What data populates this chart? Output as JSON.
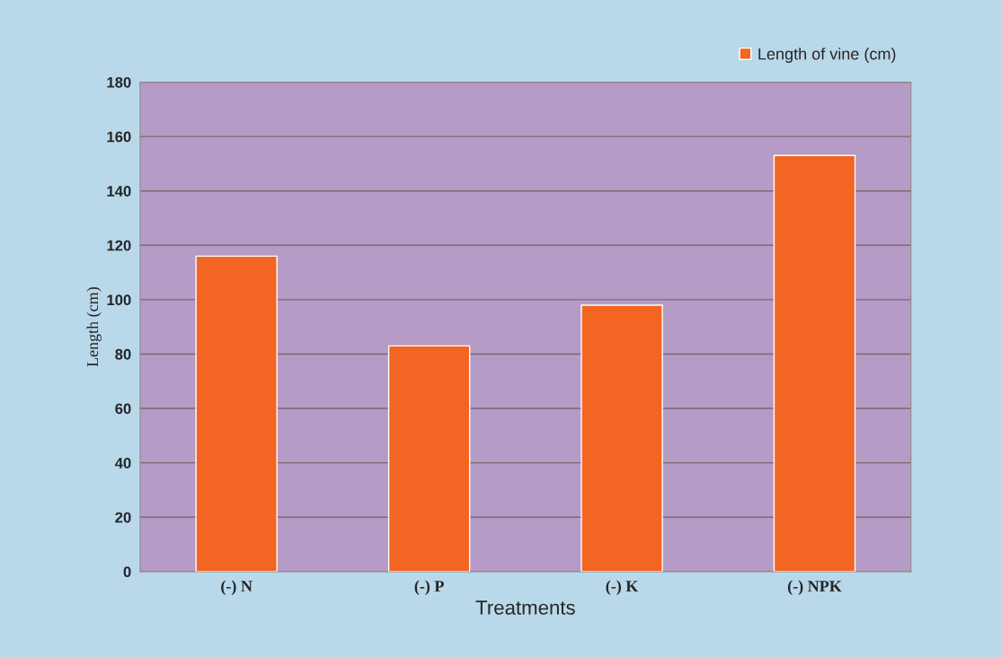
{
  "chart_data": {
    "type": "bar",
    "xlabel": "Treatments",
    "ylabel": "Length (cm)",
    "categories": [
      "(-) N",
      "(-) P",
      "(-) K",
      "(-) NPK"
    ],
    "series": [
      {
        "name": "Length of vine (cm)",
        "color": "#f26522",
        "values": [
          116,
          83,
          98,
          153
        ]
      }
    ],
    "ylim": [
      0,
      180
    ],
    "yticks": [
      0,
      20,
      40,
      60,
      80,
      100,
      120,
      140,
      160,
      180
    ],
    "grid": "y",
    "legend": "top right"
  }
}
